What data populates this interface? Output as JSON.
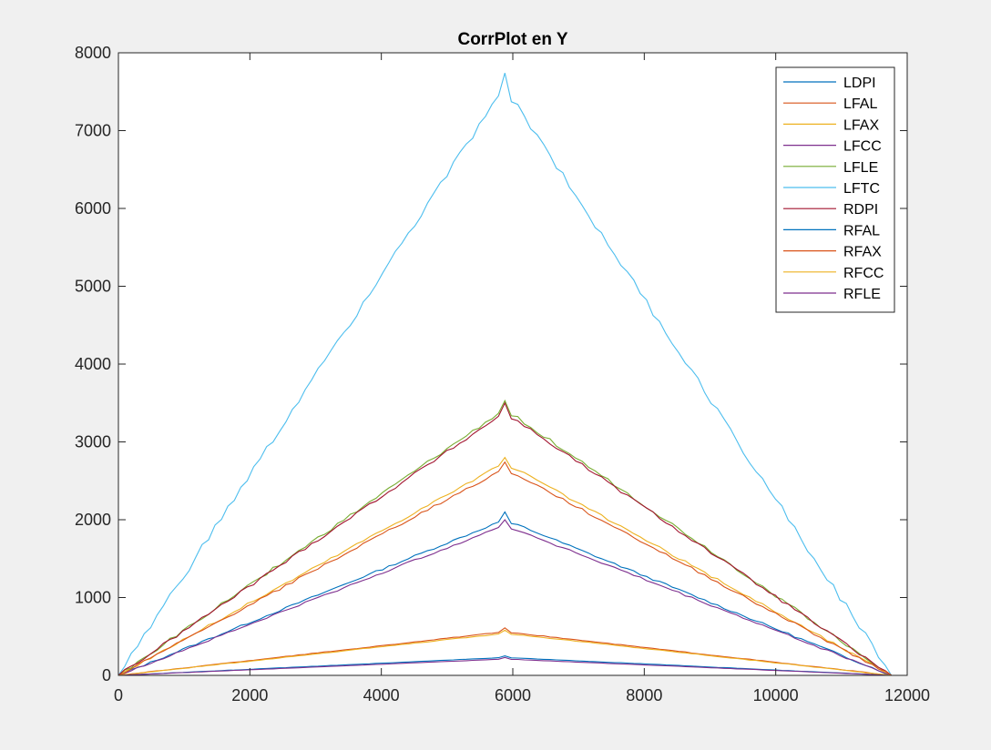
{
  "chart_data": {
    "type": "line",
    "title": "CorrPlot en Y",
    "xlabel": "",
    "ylabel": "",
    "xlim": [
      0,
      12000
    ],
    "ylim": [
      0,
      8000
    ],
    "xticks": [
      0,
      2000,
      4000,
      6000,
      8000,
      10000,
      12000
    ],
    "yticks": [
      0,
      1000,
      2000,
      3000,
      4000,
      5000,
      6000,
      7000,
      8000
    ],
    "grid": false,
    "legend_position": "top-right",
    "peak_x": 5880,
    "end_x": 11760,
    "series": [
      {
        "name": "LDPI",
        "color": "#0072BD",
        "peak": 2100,
        "shoulder": 2000
      },
      {
        "name": "LFAL",
        "color": "#D95319",
        "peak": 610,
        "shoulder": 560
      },
      {
        "name": "LFAX",
        "color": "#EDB120",
        "peak": 2800,
        "shoulder": 2730
      },
      {
        "name": "LFCC",
        "color": "#7E2F8E",
        "peak": 2000,
        "shoulder": 1930
      },
      {
        "name": "LFLE",
        "color": "#77AC30",
        "peak": 3530,
        "shoulder": 3420
      },
      {
        "name": "LFTC",
        "color": "#4DBEEE",
        "peak": 7740,
        "shoulder": 7560
      },
      {
        "name": "RDPI",
        "color": "#A2142F",
        "peak": 3500,
        "shoulder": 3380
      },
      {
        "name": "RFAL",
        "color": "#0072BD",
        "peak": 250,
        "shoulder": 230
      },
      {
        "name": "RFAX",
        "color": "#D95319",
        "peak": 2740,
        "shoulder": 2660
      },
      {
        "name": "RFCC",
        "color": "#EDB120",
        "peak": 580,
        "shoulder": 540
      },
      {
        "name": "RFLE",
        "color": "#7E2F8E",
        "peak": 230,
        "shoulder": 210
      }
    ]
  }
}
